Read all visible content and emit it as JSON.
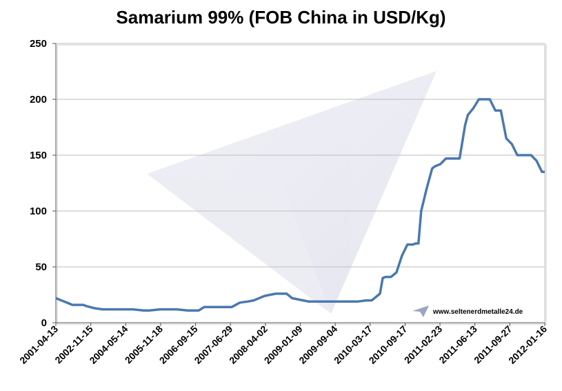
{
  "chart_data": {
    "type": "line",
    "title": "Samarium 99% (FOB China in USD/Kg)",
    "xlabel": "",
    "ylabel": "",
    "ylim": [
      0,
      250
    ],
    "yticks": [
      0,
      50,
      100,
      150,
      200,
      250
    ],
    "grid": "horizontal",
    "xtick_labels": [
      "2001-04-13",
      "2002-11-15",
      "2004-05-14",
      "2005-11-18",
      "2006-09-15",
      "2007-06-29",
      "2008-04-02",
      "2009-01-09",
      "2009-09-04",
      "2010-03-17",
      "2010-09-17",
      "2011-02-23",
      "2011-06-13",
      "2011-09-27",
      "2012-01-16"
    ],
    "series": [
      {
        "color": "#4a78b0",
        "x": [
          0,
          1,
          2,
          4,
          6,
          8,
          10,
          11,
          14,
          17,
          20,
          22,
          25,
          28,
          32,
          34,
          38,
          44,
          48,
          52,
          54,
          57,
          60,
          64,
          67,
          70,
          72,
          74,
          76,
          78,
          80,
          82,
          84,
          86,
          88,
          90,
          92,
          93,
          95,
          98,
          102,
          104,
          106,
          108,
          110,
          113,
          115,
          118,
          119,
          120,
          122,
          124,
          126,
          128,
          129,
          130,
          131,
          132,
          133,
          135,
          137,
          138,
          140,
          142,
          144,
          146,
          147,
          149,
          150,
          152,
          154,
          156,
          158,
          160,
          162,
          164,
          166,
          168,
          170,
          172,
          173,
          175,
          177,
          178
        ],
        "y": [
          22,
          21,
          20,
          18,
          16,
          16,
          16,
          15,
          13,
          12,
          12,
          12,
          12,
          12,
          11,
          11,
          12,
          12,
          11,
          11,
          14,
          14,
          14,
          14,
          18,
          19,
          20,
          22,
          24,
          25,
          26,
          26,
          26,
          22,
          21,
          20,
          19,
          19,
          19,
          19,
          19,
          19,
          19,
          19,
          19,
          20,
          20,
          26,
          40,
          41,
          41,
          45,
          60,
          70,
          70,
          70,
          71,
          71,
          100,
          120,
          138,
          140,
          142,
          147,
          147,
          147,
          147,
          177,
          186,
          192,
          200,
          200,
          200,
          190,
          190,
          165,
          160,
          150,
          150,
          150,
          150,
          145,
          135,
          135
        ]
      }
    ],
    "watermark": "www.seltenerdmetalle24.de"
  }
}
